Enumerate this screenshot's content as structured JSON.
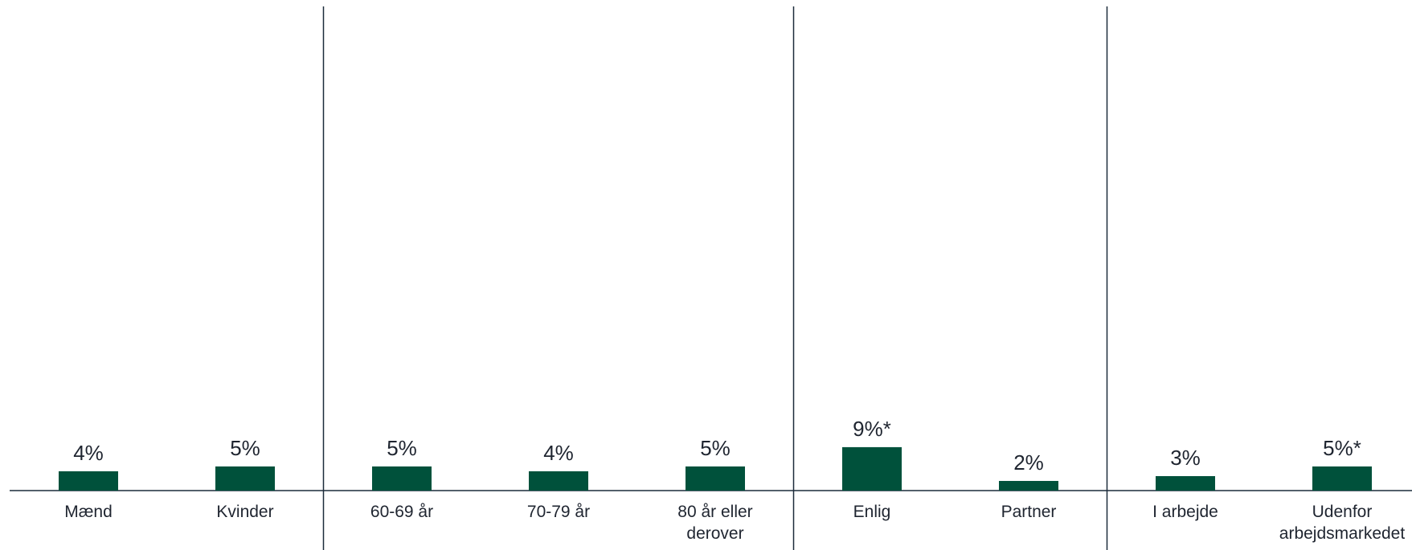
{
  "chart_data": {
    "type": "bar",
    "title": "",
    "xlabel": "",
    "ylabel": "",
    "ylim": [
      0,
      100
    ],
    "grid": false,
    "legend": "none",
    "bar_color": "#00513b",
    "axis_color": "#1c2b3a",
    "groups": [
      {
        "categories": [
          {
            "label": [
              "Mænd"
            ],
            "value": 4,
            "label_text": "4%"
          },
          {
            "label": [
              "Kvinder"
            ],
            "value": 5,
            "label_text": "5%"
          }
        ]
      },
      {
        "categories": [
          {
            "label": [
              "60-69 år"
            ],
            "value": 5,
            "label_text": "5%"
          },
          {
            "label": [
              "70-79 år"
            ],
            "value": 4,
            "label_text": "4%"
          },
          {
            "label": [
              "80 år eller",
              "derover"
            ],
            "value": 5,
            "label_text": "5%"
          }
        ]
      },
      {
        "categories": [
          {
            "label": [
              "Enlig"
            ],
            "value": 9,
            "label_text": "9%*"
          },
          {
            "label": [
              "Partner"
            ],
            "value": 2,
            "label_text": "2%"
          }
        ]
      },
      {
        "categories": [
          {
            "label": [
              "I arbejde"
            ],
            "value": 3,
            "label_text": "3%"
          },
          {
            "label": [
              "Udenfor",
              "arbejdsmarkedet"
            ],
            "value": 5,
            "label_text": "5%*"
          }
        ]
      }
    ]
  }
}
